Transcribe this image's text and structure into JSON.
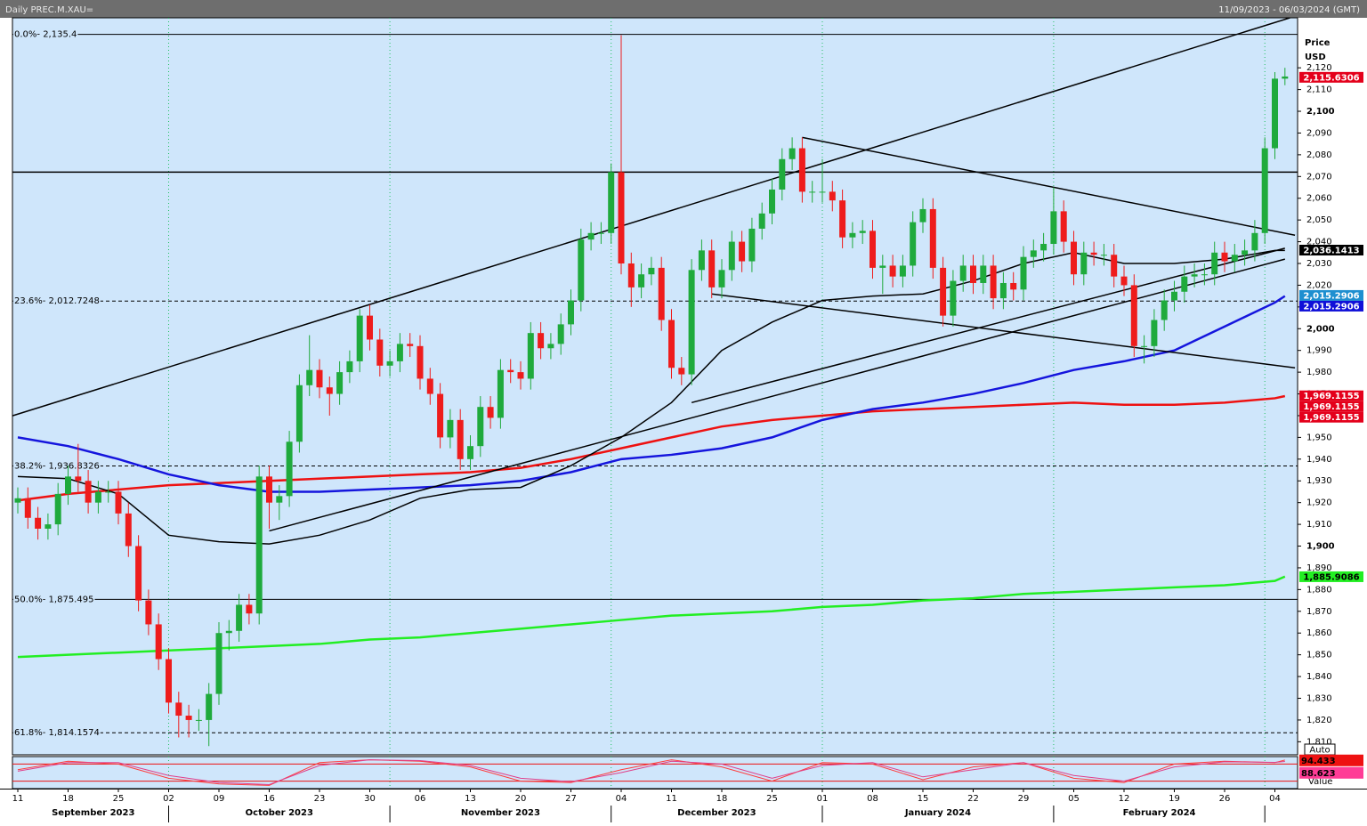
{
  "chart_data": {
    "type": "candlestick",
    "title": "Daily PREC.M.XAU=",
    "date_range": "11/09/2023 - 06/03/2024 (GMT)",
    "y_label": "Price",
    "y_unit": "USD",
    "ylim": [
      1804,
      2143
    ],
    "yticks": [
      {
        "value": 1810,
        "label": "1,810"
      },
      {
        "value": 1820,
        "label": "1,820"
      },
      {
        "value": 1830,
        "label": "1,830"
      },
      {
        "value": 1840,
        "label": "1,840"
      },
      {
        "value": 1850,
        "label": "1,850"
      },
      {
        "value": 1860,
        "label": "1,860"
      },
      {
        "value": 1870,
        "label": "1,870"
      },
      {
        "value": 1880,
        "label": "1,880"
      },
      {
        "value": 1890,
        "label": "1,890"
      },
      {
        "value": 1900,
        "label": "1,900"
      },
      {
        "value": 1910,
        "label": "1,910"
      },
      {
        "value": 1920,
        "label": "1,920"
      },
      {
        "value": 1930,
        "label": "1,930"
      },
      {
        "value": 1940,
        "label": "1,940"
      },
      {
        "value": 1950,
        "label": "1,950"
      },
      {
        "value": 1960,
        "label": "1,960"
      },
      {
        "value": 1970,
        "label": "1,970"
      },
      {
        "value": 1980,
        "label": "1,980"
      },
      {
        "value": 1990,
        "label": "1,990"
      },
      {
        "value": 2000,
        "label": "2,000"
      },
      {
        "value": 2010,
        "label": "2,010"
      },
      {
        "value": 2020,
        "label": "2,020"
      },
      {
        "value": 2030,
        "label": "2,030"
      },
      {
        "value": 2040,
        "label": "2,040"
      },
      {
        "value": 2050,
        "label": "2,050"
      },
      {
        "value": 2060,
        "label": "2,060"
      },
      {
        "value": 2070,
        "label": "2,070"
      },
      {
        "value": 2080,
        "label": "2,080"
      },
      {
        "value": 2090,
        "label": "2,090"
      },
      {
        "value": 2100,
        "label": "2,100"
      },
      {
        "value": 2110,
        "label": "2,110"
      },
      {
        "value": 2120,
        "label": "2,120"
      }
    ],
    "candle_colors": {
      "up": "#1faa3c",
      "down": "#ee1c1c"
    },
    "open": [
      1920,
      1922,
      1913,
      1908,
      1910,
      1924,
      1932,
      1930,
      1920,
      1925,
      1925,
      1915,
      1900,
      1875,
      1864,
      1848,
      1828,
      1822,
      1820,
      1820,
      1832,
      1860,
      1861,
      1873,
      1869,
      1932,
      1920,
      1923,
      1948,
      1974,
      1981,
      1973,
      1970,
      1980,
      1985,
      2006,
      1995,
      1983,
      1985,
      1993,
      1992,
      1977,
      1970,
      1950,
      1958,
      1940,
      1946,
      1964,
      1959,
      1981,
      1980,
      1977,
      1998,
      1991,
      1993,
      2002,
      2013,
      2041,
      2044,
      2044,
      2072,
      2030,
      2019,
      2025,
      2028,
      2004,
      1982,
      1979,
      2027,
      2036,
      2019,
      2027,
      2040,
      2031,
      2046,
      2053,
      2064,
      2078,
      2083,
      2063,
      2063,
      2063,
      2059,
      2042,
      2044,
      2045,
      2028,
      2029,
      2024,
      2029,
      2049,
      2055,
      2028,
      2006,
      2022,
      2029,
      2021,
      2029,
      2014,
      2021,
      2018,
      2033,
      2036,
      2039,
      2054,
      2040,
      2025,
      2035,
      2034,
      2034,
      2024,
      2020,
      1992,
      1992,
      2004,
      2013,
      2017,
      2024,
      2025,
      2025,
      2035,
      2031,
      2034,
      2036,
      2044,
      2083,
      2115
    ],
    "high": [
      1927,
      1927,
      1918,
      1915,
      1929,
      1937,
      1947,
      1935,
      1930,
      1930,
      1930,
      1920,
      1905,
      1880,
      1869,
      1853,
      1833,
      1827,
      1825,
      1837,
      1865,
      1866,
      1878,
      1878,
      1937,
      1937,
      1928,
      1953,
      1979,
      1997,
      1986,
      1978,
      1985,
      1990,
      2009,
      2011,
      2000,
      1990,
      1998,
      1998,
      1997,
      1982,
      1975,
      1963,
      1963,
      1951,
      1969,
      1969,
      1986,
      1986,
      1985,
      2003,
      2003,
      1998,
      2007,
      2018,
      2046,
      2049,
      2049,
      2076,
      2135,
      2035,
      2030,
      2033,
      2033,
      2009,
      1987,
      2032,
      2041,
      2041,
      2032,
      2045,
      2045,
      2051,
      2058,
      2069,
      2083,
      2088,
      2088,
      2068,
      2078,
      2068,
      2064,
      2049,
      2050,
      2050,
      2034,
      2034,
      2034,
      2054,
      2060,
      2060,
      2033,
      2027,
      2034,
      2034,
      2034,
      2034,
      2026,
      2026,
      2038,
      2041,
      2044,
      2065,
      2059,
      2045,
      2040,
      2040,
      2039,
      2039,
      2029,
      2025,
      1997,
      2009,
      2018,
      2022,
      2029,
      2030,
      2030,
      2040,
      2040,
      2039,
      2041,
      2050,
      2088,
      2118,
      2120
    ],
    "low": [
      1915,
      1908,
      1903,
      1903,
      1905,
      1919,
      1925,
      1915,
      1915,
      1920,
      1910,
      1895,
      1870,
      1859,
      1843,
      1823,
      1812,
      1812,
      1815,
      1808,
      1827,
      1852,
      1856,
      1864,
      1864,
      1908,
      1912,
      1918,
      1943,
      1969,
      1968,
      1960,
      1965,
      1975,
      1980,
      1990,
      1978,
      1978,
      1980,
      1987,
      1972,
      1965,
      1945,
      1945,
      1935,
      1935,
      1941,
      1954,
      1954,
      1975,
      1972,
      1972,
      1986,
      1986,
      1988,
      1997,
      2008,
      2036,
      2039,
      2039,
      2025,
      2010,
      2014,
      2020,
      1999,
      1977,
      1974,
      1974,
      2022,
      2014,
      2014,
      2022,
      2026,
      2026,
      2041,
      2048,
      2059,
      2073,
      2058,
      2058,
      2058,
      2054,
      2037,
      2037,
      2039,
      2023,
      2016,
      2019,
      2019,
      2024,
      2044,
      2023,
      2001,
      2001,
      2017,
      2016,
      2016,
      2009,
      2009,
      2013,
      2013,
      2028,
      2031,
      2034,
      2035,
      2020,
      2020,
      2029,
      2029,
      2019,
      2015,
      1987,
      1984,
      1987,
      1999,
      2008,
      2012,
      2019,
      2020,
      2020,
      2026,
      2026,
      2029,
      2031,
      2039,
      2078,
      2112
    ],
    "close": [
      1922,
      1913,
      1908,
      1910,
      1924,
      1932,
      1930,
      1920,
      1925,
      1925,
      1915,
      1900,
      1875,
      1864,
      1848,
      1828,
      1822,
      1820,
      1820,
      1832,
      1860,
      1861,
      1873,
      1869,
      1932,
      1920,
      1923,
      1948,
      1974,
      1981,
      1973,
      1970,
      1980,
      1985,
      2006,
      1995,
      1983,
      1985,
      1993,
      1992,
      1977,
      1970,
      1950,
      1958,
      1940,
      1946,
      1964,
      1959,
      1981,
      1980,
      1977,
      1998,
      1991,
      1993,
      2002,
      2013,
      2041,
      2044,
      2044,
      2072,
      2030,
      2019,
      2025,
      2028,
      2004,
      1982,
      1979,
      2027,
      2036,
      2019,
      2027,
      2040,
      2031,
      2046,
      2053,
      2064,
      2078,
      2083,
      2063,
      2063,
      2063,
      2059,
      2042,
      2044,
      2045,
      2028,
      2029,
      2024,
      2029,
      2049,
      2055,
      2028,
      2006,
      2022,
      2029,
      2021,
      2029,
      2014,
      2021,
      2018,
      2033,
      2036,
      2039,
      2054,
      2040,
      2025,
      2035,
      2034,
      2034,
      2024,
      2020,
      1992,
      1992,
      2004,
      2013,
      2017,
      2024,
      2025,
      2025,
      2035,
      2031,
      2034,
      2036,
      2044,
      2083,
      2115,
      2116
    ],
    "xticks": [
      {
        "value": 0,
        "label": "11"
      },
      {
        "value": 5,
        "label": "18"
      },
      {
        "value": 10,
        "label": "25"
      },
      {
        "value": 15,
        "label": "02"
      },
      {
        "value": 20,
        "label": "09"
      },
      {
        "value": 25,
        "label": "16"
      },
      {
        "value": 30,
        "label": "23"
      },
      {
        "value": 35,
        "label": "30"
      },
      {
        "value": 40,
        "label": "06"
      },
      {
        "value": 45,
        "label": "13"
      },
      {
        "value": 50,
        "label": "20"
      },
      {
        "value": 55,
        "label": "27"
      },
      {
        "value": 60,
        "label": "04"
      },
      {
        "value": 65,
        "label": "11"
      },
      {
        "value": 70,
        "label": "18"
      },
      {
        "value": 75,
        "label": "25"
      },
      {
        "value": 80,
        "label": "01"
      },
      {
        "value": 85,
        "label": "08"
      },
      {
        "value": 90,
        "label": "15"
      },
      {
        "value": 95,
        "label": "22"
      },
      {
        "value": 100,
        "label": "29"
      },
      {
        "value": 105,
        "label": "05"
      },
      {
        "value": 110,
        "label": "12"
      },
      {
        "value": 115,
        "label": "19"
      },
      {
        "value": 120,
        "label": "26"
      },
      {
        "value": 125,
        "label": "04"
      }
    ],
    "months": [
      {
        "value": 0,
        "label": "September 2023"
      },
      {
        "value": 15,
        "label": "October 2023"
      },
      {
        "value": 37,
        "label": "November 2023"
      },
      {
        "value": 59,
        "label": "December 2023"
      },
      {
        "value": 80,
        "label": "January 2024"
      },
      {
        "value": 103,
        "label": "February 2024"
      }
    ],
    "month_grid": [
      15,
      37,
      59,
      80,
      103,
      124
    ],
    "ma_x": [
      0,
      5,
      10,
      15,
      20,
      25,
      30,
      35,
      40,
      45,
      50,
      55,
      60,
      65,
      70,
      75,
      80,
      85,
      90,
      95,
      100,
      105,
      110,
      115,
      120,
      125,
      126
    ],
    "moving_averages": [
      {
        "color": "#22ee22",
        "values": [
          1849,
          1850,
          1851,
          1852,
          1853,
          1854,
          1855,
          1857,
          1858,
          1860,
          1862,
          1864,
          1866,
          1868,
          1869,
          1870,
          1872,
          1873,
          1875,
          1876,
          1878,
          1879,
          1880,
          1881,
          1882,
          1884,
          1886
        ]
      },
      {
        "color": "#ee1111",
        "values": [
          1921,
          1924,
          1926,
          1928,
          1929,
          1930,
          1931,
          1932,
          1933,
          1934,
          1936,
          1940,
          1945,
          1950,
          1955,
          1958,
          1960,
          1962,
          1963,
          1964,
          1965,
          1966,
          1965,
          1965,
          1966,
          1968,
          1969
        ]
      },
      {
        "color": "#1515dd",
        "values": [
          1950,
          1946,
          1940,
          1933,
          1928,
          1925,
          1925,
          1926,
          1927,
          1928,
          1930,
          1934,
          1940,
          1942,
          1945,
          1950,
          1958,
          1963,
          1966,
          1970,
          1975,
          1981,
          1985,
          1990,
          2001,
          2012,
          2015
        ]
      },
      {
        "color": "#000000",
        "values": [
          1932,
          1931,
          1924,
          1905,
          1902,
          1901,
          1905,
          1912,
          1922,
          1926,
          1927,
          1937,
          1950,
          1966,
          1990,
          2003,
          2013,
          2015,
          2016,
          2022,
          2030,
          2035,
          2030,
          2030,
          2032,
          2036,
          2036
        ]
      }
    ],
    "trendlines": [
      {
        "color": "#000000",
        "points": [
          [
            -0.5,
            1960
          ],
          [
            126.5,
            2143
          ]
        ]
      },
      {
        "color": "#000000",
        "points": [
          [
            78,
            2088
          ],
          [
            127,
            2043
          ]
        ]
      },
      {
        "color": "#000000",
        "points": [
          [
            69,
            2016
          ],
          [
            127,
            1982
          ]
        ]
      },
      {
        "color": "#000000",
        "points": [
          [
            25,
            1907
          ],
          [
            126,
            2032
          ]
        ]
      },
      {
        "color": "#000000",
        "points": [
          [
            67,
            1966
          ],
          [
            126,
            2037
          ]
        ]
      }
    ],
    "hlines": [
      2072
    ],
    "fib_levels": [
      {
        "value": 2135.4,
        "label": "0.0%- 2,135.4",
        "dashed": false
      },
      {
        "value": 2012.7248,
        "label": "23.6%- 2,012.7248",
        "dashed": true
      },
      {
        "value": 1936.8326,
        "label": "38.2%- 1,936.8326",
        "dashed": true
      },
      {
        "value": 1875.495,
        "label": "50.0%- 1,875.495",
        "dashed": false
      },
      {
        "value": 1814.1574,
        "label": "61.8%- 1,814.1574",
        "dashed": true
      }
    ],
    "price_labels": [
      {
        "value": 2115.6306,
        "label": "2,115.6306",
        "color": "#e4001b",
        "text_color": "#ffffff"
      },
      {
        "value": 2036.1413,
        "label": "2,036.1413",
        "color": "#000000",
        "text_color": "#ffffff"
      },
      {
        "value": 2015.2906,
        "label": "2,015.2906",
        "color": "#1e8fd0",
        "text_color": "#ffffff"
      },
      {
        "value": 2015.2906,
        "label": "2,015.2906",
        "color": "#1010d8",
        "text_color": "#ffffff"
      },
      {
        "value": 1969.1155,
        "label": "1,969.1155",
        "color": "#e4001b",
        "text_color": "#ffffff"
      },
      {
        "value": 1969.1155,
        "label": "1,969.1155",
        "color": "#e4001b",
        "text_color": "#ffffff"
      },
      {
        "value": 1969.1155,
        "label": "1,969.1155",
        "color": "#e4001b",
        "text_color": "#ffffff"
      },
      {
        "value": 1885.9086,
        "label": "1,885.9086",
        "color": "#22ee22",
        "text_color": "#000000"
      }
    ],
    "oscillator": {
      "ylim": [
        0,
        100
      ],
      "levels": [
        80,
        20
      ],
      "series": [
        {
          "color": "#ff3c3c",
          "values": [
            60,
            90,
            80,
            30,
            10,
            5,
            85,
            95,
            90,
            70,
            20,
            15,
            60,
            95,
            70,
            20,
            85,
            80,
            25,
            70,
            85,
            30,
            15,
            80,
            90,
            85,
            94
          ]
        },
        {
          "color": "#e0408a",
          "values": [
            55,
            85,
            85,
            40,
            15,
            8,
            75,
            95,
            92,
            75,
            30,
            18,
            50,
            90,
            80,
            30,
            75,
            85,
            35,
            60,
            85,
            40,
            20,
            70,
            88,
            86,
            89
          ]
        }
      ],
      "labels": [
        {
          "value": 94.433,
          "label": "94.433",
          "color": "#ee1111"
        },
        {
          "value": 88.623,
          "label": "88.623",
          "color": "#ff3c96"
        }
      ],
      "mode": "Auto",
      "value_label": "Value"
    }
  }
}
